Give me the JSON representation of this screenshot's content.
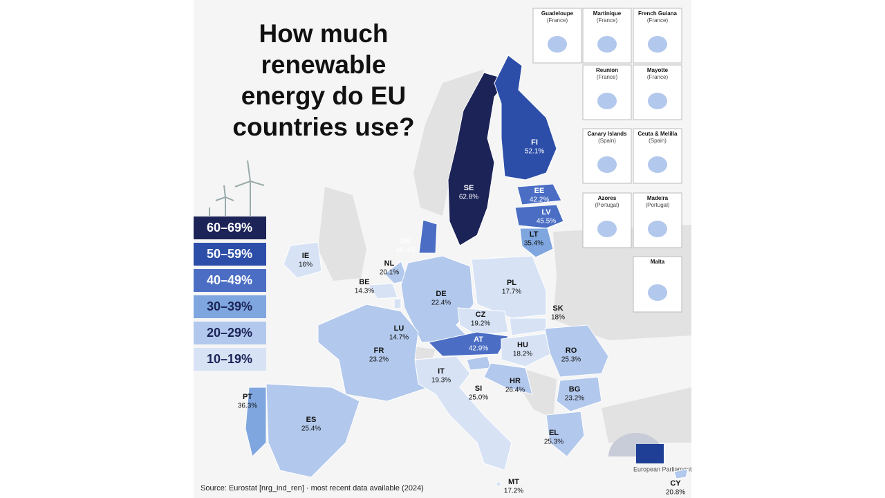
{
  "title": "How much renewable energy do EU countries use?",
  "legend": [
    {
      "label": "60–69%",
      "color": "#1b2357"
    },
    {
      "label": "50–59%",
      "color": "#2c4ea8"
    },
    {
      "label": "40–49%",
      "color": "#4b6ec4"
    },
    {
      "label": "30–39%",
      "color": "#7fa6de"
    },
    {
      "label": "20–29%",
      "color": "#b2c8ec"
    },
    {
      "label": "10–19%",
      "color": "#d7e3f5"
    }
  ],
  "countries": [
    {
      "code": "SE",
      "value": "62.8%",
      "color": "#1b2357"
    },
    {
      "code": "FI",
      "value": "52.1%",
      "color": "#2c4ea8"
    },
    {
      "code": "EE",
      "value": "42.2%",
      "color": "#4b6ec4"
    },
    {
      "code": "LV",
      "value": "45.5%",
      "color": "#4b6ec4"
    },
    {
      "code": "LT",
      "value": "35.4%",
      "color": "#7fa6de"
    },
    {
      "code": "DK",
      "value": "46.4%",
      "color": "#4b6ec4"
    },
    {
      "code": "IE",
      "value": "16%",
      "color": "#d7e3f5"
    },
    {
      "code": "NL",
      "value": "20.1%",
      "color": "#b2c8ec"
    },
    {
      "code": "BE",
      "value": "14.3%",
      "color": "#d7e3f5"
    },
    {
      "code": "DE",
      "value": "22.4%",
      "color": "#b2c8ec"
    },
    {
      "code": "PL",
      "value": "17.7%",
      "color": "#d7e3f5"
    },
    {
      "code": "CZ",
      "value": "19.2%",
      "color": "#d7e3f5"
    },
    {
      "code": "SK",
      "value": "18%",
      "color": "#d7e3f5"
    },
    {
      "code": "LU",
      "value": "14.7%",
      "color": "#d7e3f5"
    },
    {
      "code": "FR",
      "value": "23.2%",
      "color": "#b2c8ec"
    },
    {
      "code": "AT",
      "value": "42.9%",
      "color": "#4b6ec4"
    },
    {
      "code": "HU",
      "value": "18.2%",
      "color": "#d7e3f5"
    },
    {
      "code": "RO",
      "value": "25.3%",
      "color": "#b2c8ec"
    },
    {
      "code": "IT",
      "value": "19.3%",
      "color": "#d7e3f5"
    },
    {
      "code": "SI",
      "value": "25.0%",
      "color": "#b2c8ec"
    },
    {
      "code": "HR",
      "value": "26.4%",
      "color": "#b2c8ec"
    },
    {
      "code": "BG",
      "value": "23.2%",
      "color": "#b2c8ec"
    },
    {
      "code": "PT",
      "value": "36.3%",
      "color": "#7fa6de"
    },
    {
      "code": "ES",
      "value": "25.4%",
      "color": "#b2c8ec"
    },
    {
      "code": "EL",
      "value": "25.3%",
      "color": "#b2c8ec"
    },
    {
      "code": "MT",
      "value": "17.2%",
      "color": "#d7e3f5"
    },
    {
      "code": "CY",
      "value": "20.8%",
      "color": "#b2c8ec"
    }
  ],
  "insets": [
    {
      "name": "Guadeloupe",
      "note": "(France)"
    },
    {
      "name": "Martinique",
      "note": "(France)"
    },
    {
      "name": "French Guiana",
      "note": "(France)"
    },
    {
      "name": "Reunion",
      "note": "(France)"
    },
    {
      "name": "Mayotte",
      "note": "(France)"
    },
    {
      "name": "Canary Islands",
      "note": "(Spain)"
    },
    {
      "name": "Ceuta & Melilla",
      "note": "(Spain)"
    },
    {
      "name": "Azores",
      "note": "(Portugal)"
    },
    {
      "name": "Madeira",
      "note": "(Portugal)"
    },
    {
      "name": "Malta"
    }
  ],
  "source": "Source: Eurostat [nrg_ind_ren] · most recent data available (2024)",
  "logo": "European Parliament"
}
